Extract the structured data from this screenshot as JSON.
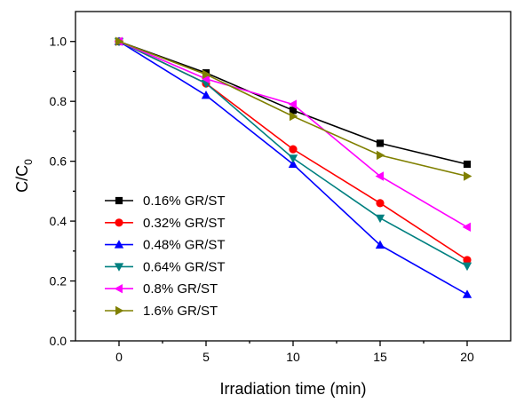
{
  "chart_data": {
    "type": "line",
    "xlabel": "Irradiation time (min)",
    "ylabel_main": "C/C",
    "ylabel_sub": "0",
    "xlim": [
      -2.5,
      22.5
    ],
    "ylim": [
      0.0,
      1.1
    ],
    "xticks": [
      0,
      5,
      10,
      15,
      20
    ],
    "xtick_labels": [
      "0",
      "5",
      "10",
      "15",
      "20"
    ],
    "yticks": [
      0.0,
      0.2,
      0.4,
      0.6,
      0.8,
      1.0
    ],
    "ytick_labels": [
      "0.0",
      "0.2",
      "0.4",
      "0.6",
      "0.8",
      "1.0"
    ],
    "grid": false,
    "legend_position": "lower-left",
    "x": [
      0,
      5,
      10,
      15,
      20
    ],
    "series": [
      {
        "name": "0.16% GR/ST",
        "color": "#000000",
        "marker": "square",
        "values": [
          1.0,
          0.895,
          0.77,
          0.66,
          0.59
        ]
      },
      {
        "name": "0.32% GR/ST",
        "color": "#ff0000",
        "marker": "circle",
        "values": [
          1.0,
          0.86,
          0.64,
          0.46,
          0.27
        ]
      },
      {
        "name": "0.48% GR/ST",
        "color": "#0000ff",
        "marker": "triangle-up",
        "values": [
          1.0,
          0.82,
          0.59,
          0.32,
          0.155
        ]
      },
      {
        "name": "0.64% GR/ST",
        "color": "#008080",
        "marker": "triangle-down",
        "values": [
          1.0,
          0.86,
          0.61,
          0.41,
          0.25
        ]
      },
      {
        "name": "0.8% GR/ST",
        "color": "#ff00ff",
        "marker": "triangle-left",
        "values": [
          1.0,
          0.875,
          0.79,
          0.55,
          0.38
        ]
      },
      {
        "name": "1.6% GR/ST",
        "color": "#808000",
        "marker": "triangle-right",
        "values": [
          1.0,
          0.89,
          0.75,
          0.62,
          0.55
        ]
      }
    ]
  }
}
